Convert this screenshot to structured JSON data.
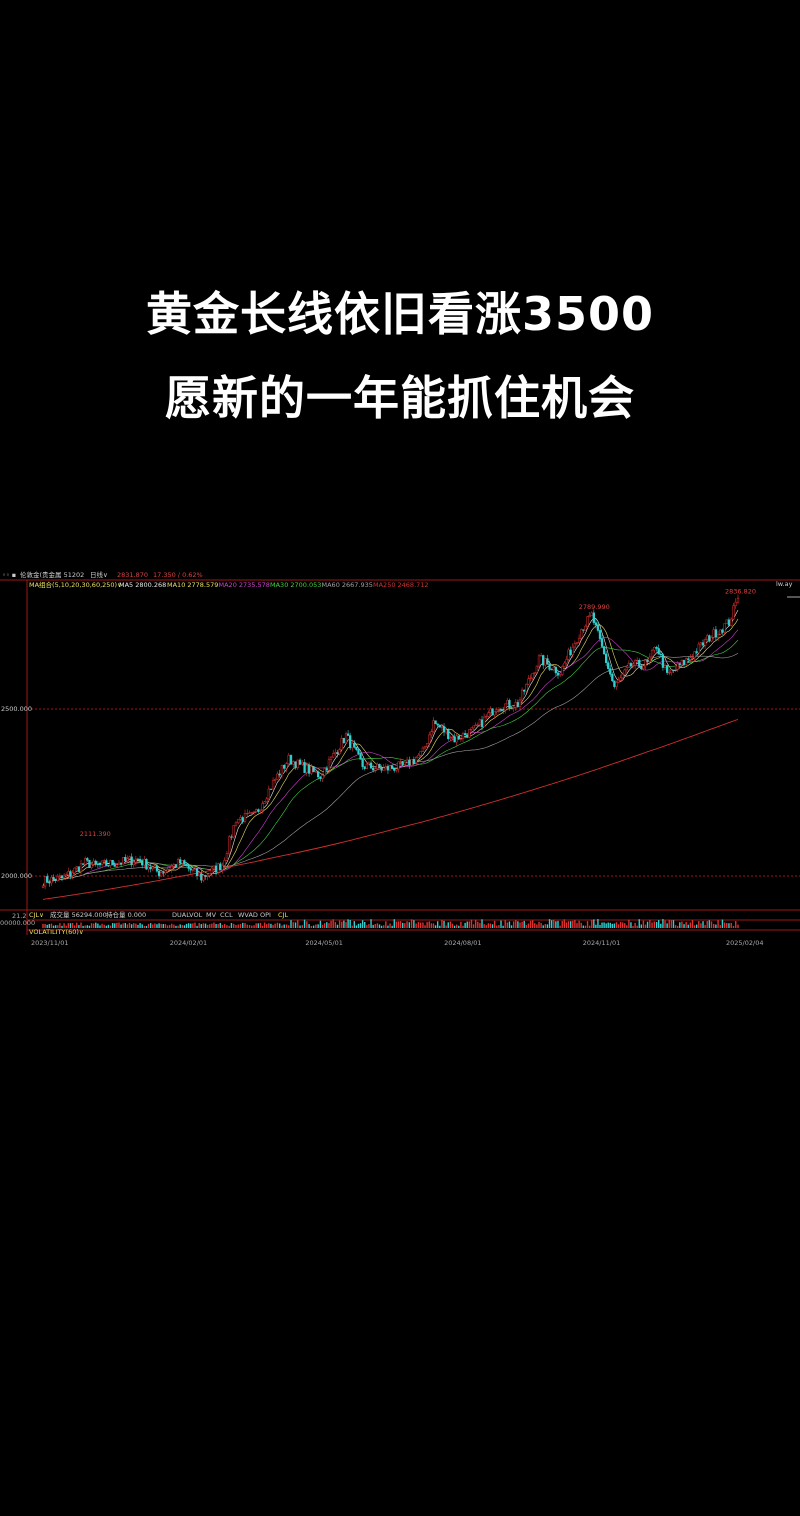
{
  "overlay_text": {
    "line1": "黄金长线依旧看涨3500",
    "line2": "愿新的一年能抓住机会"
  },
  "header": {
    "symbol": "伦敦金(贵金属 51202",
    "period": "日线∨",
    "last_price": "2831.870",
    "change": "17.350 / 0.62%",
    "right_label": "lw.ay"
  },
  "ma_legend": {
    "title": "MA组合(5,10,20,30,60,250)∨",
    "items": [
      {
        "label": "MA5 2800.268",
        "color": "#e8e8e8"
      },
      {
        "label": "MA10 2778.579",
        "color": "#e8e060"
      },
      {
        "label": "MA20 2735.578",
        "color": "#d040d0"
      },
      {
        "label": "MA30 2700.053",
        "color": "#40d040"
      },
      {
        "label": "MA60 2667.935",
        "color": "#a0a0a0"
      },
      {
        "label": "MA250 2468.712",
        "color": "#d03030"
      }
    ]
  },
  "indicator": {
    "name": "CJL∨",
    "volume": "成交量 56294.000",
    "open_interest": "持仓量 0.000",
    "tabs": [
      "DUALVOL",
      "MV",
      "CCL",
      "WVAD",
      "OPI",
      "CJL"
    ],
    "left_labels": [
      "21.2",
      "00000.000"
    ],
    "second": "VOLATILITY(60)∨"
  },
  "colors": {
    "up": "#e03030",
    "down": "#30d0d0",
    "border": "#a01818",
    "text_red": "#e04040",
    "axis_text": "#aaaaaa"
  },
  "chart_data": {
    "type": "candlestick",
    "title": "",
    "y_ticks": [
      {
        "value": 2500,
        "label": "2500.000"
      },
      {
        "value": 2000,
        "label": "2000.000"
      }
    ],
    "x_ticks": [
      "2023/11/01",
      "2024/02/01",
      "2024/05/01",
      "2024/08/01",
      "2024/11/01",
      "2025/02/04"
    ],
    "annotations": [
      {
        "date": "2023-12-04",
        "value": 2111.39,
        "label": "2111.390"
      },
      {
        "date": "2024-10-30",
        "value": 2789.99,
        "label": "2789.990"
      },
      {
        "date": "2025-02-04",
        "value": 2836.82,
        "label": "2836.820"
      }
    ],
    "closes": [
      [
        "2023-11-01",
        1985
      ],
      [
        "2023-11-15",
        1995
      ],
      [
        "2023-11-29",
        2040
      ],
      [
        "2023-12-06",
        2030
      ],
      [
        "2023-12-20",
        2040
      ],
      [
        "2024-01-03",
        2050
      ],
      [
        "2024-01-17",
        2010
      ],
      [
        "2024-01-31",
        2040
      ],
      [
        "2024-02-14",
        1995
      ],
      [
        "2024-02-28",
        2035
      ],
      [
        "2024-03-08",
        2170
      ],
      [
        "2024-03-20",
        2180
      ],
      [
        "2024-04-03",
        2290
      ],
      [
        "2024-04-12",
        2350
      ],
      [
        "2024-04-24",
        2320
      ],
      [
        "2024-05-03",
        2300
      ],
      [
        "2024-05-20",
        2420
      ],
      [
        "2024-05-31",
        2330
      ],
      [
        "2024-06-14",
        2320
      ],
      [
        "2024-06-28",
        2330
      ],
      [
        "2024-07-10",
        2370
      ],
      [
        "2024-07-17",
        2460
      ],
      [
        "2024-07-31",
        2410
      ],
      [
        "2024-08-14",
        2440
      ],
      [
        "2024-08-28",
        2510
      ],
      [
        "2024-09-11",
        2515
      ],
      [
        "2024-09-25",
        2650
      ],
      [
        "2024-10-09",
        2610
      ],
      [
        "2024-10-23",
        2740
      ],
      [
        "2024-10-30",
        2780
      ],
      [
        "2024-11-14",
        2565
      ],
      [
        "2024-11-25",
        2630
      ],
      [
        "2024-12-06",
        2635
      ],
      [
        "2024-12-12",
        2690
      ],
      [
        "2024-12-19",
        2600
      ],
      [
        "2025-01-02",
        2650
      ],
      [
        "2025-01-16",
        2715
      ],
      [
        "2025-01-29",
        2760
      ],
      [
        "2025-02-04",
        2831.87
      ]
    ],
    "ma250_last": 2468.712
  }
}
